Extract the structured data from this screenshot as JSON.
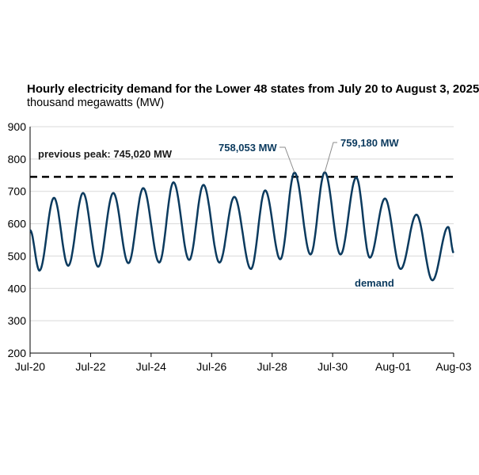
{
  "chart_data": {
    "type": "line",
    "title": "Hourly electricity demand for the Lower 48 states from July 20 to August 3, 2025",
    "subtitle": "thousand megawatts (MW)",
    "xlabel": "",
    "ylabel": "thousand megawatts (MW)",
    "ylim": [
      200,
      900
    ],
    "xlim_days": [
      0,
      14
    ],
    "y_ticks": [
      "200",
      "300",
      "400",
      "500",
      "600",
      "700",
      "800",
      "900"
    ],
    "x_ticks": [
      {
        "day": 0,
        "label": "Jul-20"
      },
      {
        "day": 2,
        "label": "Jul-22"
      },
      {
        "day": 4,
        "label": "Jul-24"
      },
      {
        "day": 6,
        "label": "Jul-26"
      },
      {
        "day": 8,
        "label": "Jul-28"
      },
      {
        "day": 10,
        "label": "Jul-30"
      },
      {
        "day": 12,
        "label": "Aug-01"
      },
      {
        "day": 14,
        "label": "Aug-03"
      }
    ],
    "grid": true,
    "series": [
      {
        "name": "demand",
        "color": "#0b3a5e",
        "extrema_day_value": [
          [
            0,
            580
          ],
          [
            0.31,
            455
          ],
          [
            0.79,
            680
          ],
          [
            1.26,
            470
          ],
          [
            1.75,
            695
          ],
          [
            2.25,
            467
          ],
          [
            2.75,
            695
          ],
          [
            3.25,
            478
          ],
          [
            3.74,
            710
          ],
          [
            4.27,
            480
          ],
          [
            4.74,
            728
          ],
          [
            5.26,
            488
          ],
          [
            5.73,
            720
          ],
          [
            6.26,
            480
          ],
          [
            6.75,
            683
          ],
          [
            7.3,
            460
          ],
          [
            7.77,
            703
          ],
          [
            8.27,
            490
          ],
          [
            8.74,
            758
          ],
          [
            9.27,
            505
          ],
          [
            9.74,
            759
          ],
          [
            10.26,
            505
          ],
          [
            10.78,
            743
          ],
          [
            11.23,
            495
          ],
          [
            11.73,
            678
          ],
          [
            12.25,
            460
          ],
          [
            12.77,
            628
          ],
          [
            13.3,
            425
          ],
          [
            13.82,
            590
          ],
          [
            14,
            510
          ]
        ]
      }
    ],
    "reference_line": {
      "value": 745.02,
      "label": "previous peak: 745,020 MW"
    },
    "annotations": [
      {
        "text": "758,053 MW",
        "day": 8.74,
        "value": 758.053
      },
      {
        "text": "759,180 MW",
        "day": 9.74,
        "value": 759.18
      }
    ],
    "series_label": "demand"
  }
}
